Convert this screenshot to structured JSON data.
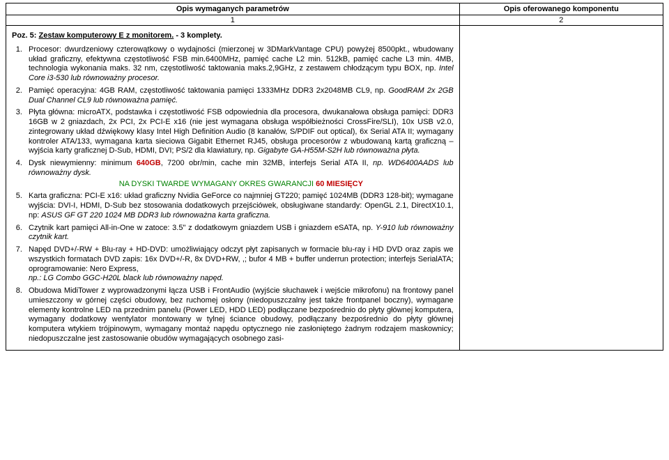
{
  "headers": {
    "left": "Opis wymaganych parametrów",
    "right": "Opis oferowanego komponentu",
    "col1": "1",
    "col2": "2"
  },
  "title": {
    "prefix": "Poz. 5: ",
    "underline": "Zestaw komputerowy E z monitorem.",
    "suffix": " - 3 komplety."
  },
  "items": {
    "i1": {
      "text": "Procesor: dwurdzeniowy czterowątkowy o wydajności (mierzonej w 3DMarkVantage CPU) powyżej 8500pkt., wbudowany układ graficzny, efektywna częstotliwość FSB min.6400MHz, pamięć cache L2 min. 512kB, pamięć cache L3 min. 4MB, technologia wykonania maks. 32 nm, częstotliwość taktowania maks.2,9GHz, z zestawem chłodzącym typu BOX, np. ",
      "em": "Intel Core i3-530 lub równoważny procesor."
    },
    "i2": {
      "text": "Pamięć operacyjna: 4GB RAM, częstotliwość taktowania pamięci 1333MHz DDR3 2x2048MB CL9, np. ",
      "em": "GoodRAM 2x 2GB Dual Channel CL9 lub równoważna pamięć."
    },
    "i3": {
      "text": "Płyta główna: microATX, podstawka i częstotliwość FSB odpowiednia dla procesora, dwukanałowa obsługa pamięci: DDR3  16GB w 2 gniazdach, 2x PCI, 2x PCI-E x16 (nie jest wymagana obsługa współbieżności CrossFire/SLI), 10x USB v2.0, zintegrowany układ dźwiękowy klasy Intel High Definition Audio (8 kanałów, S/PDIF out optical), 6x Serial ATA II; wymagany kontroler ATA/133, wymagana karta sieciowa Gigabit Ethernet RJ45, obsługa procesorów z wbudowaną kartą graficzną – wyjścia karty graficznej D-Sub, HDMI, DVI; PS/2 dla klawiatury, np. ",
      "em": "Gigabyte GA-H55M-S2H lub równoważna płyta."
    },
    "i4": {
      "pre": "Dysk niewymienny: minimum ",
      "red": "640GB",
      "post": ", 7200 obr/min, cache min 32MB, interfejs Serial ATA II, ",
      "np": "np. ",
      "em": "WD6400AADS lub równoważny dysk.",
      "green_pre": "NA DYSKI TWARDE WYMAGANY OKRES GWARANCJI ",
      "green_red": "60 MIESIĘCY"
    },
    "i5": {
      "text": "Karta graficzna: PCI-E x16: układ graficzny Nvidia GeForce co najmniej GT220; pamięć 1024MB (DDR3 128-bit); wymagane wyjścia: DVI-I, HDMI, D-Sub bez stosowania dodatkowych przejściówek, obsługiwane standardy: OpenGL 2.1, DirectX10.1, np: ",
      "em": "ASUS GF GT 220 1024 MB DDR3 lub równoważna karta graficzna."
    },
    "i6": {
      "text": "Czytnik kart pamięci All-in-One w zatoce: 3.5\"  z dodatkowym gniazdem USB i gniazdem eSATA, np.  ",
      "em": "Y-910 lub równoważny czytnik kart."
    },
    "i7": {
      "text": "Napęd DVD+/-RW + Blu-ray + HD-DVD: umożliwiający odczyt płyt zapisanych w formacie blu-ray i HD DVD oraz zapis we wszystkich formatach DVD zapis: 16x DVD+/-R, 8x DVD+RW, ,; bufor 4 MB + buffer underrun protection; interfejs SerialATA; oprogramowanie: Nero Express,",
      "em": "np.: LG Combo GGC-H20L black lub równoważny napęd."
    },
    "i8": {
      "text": "Obudowa MidiTower z wyprowadzonymi łącza USB i FrontAudio (wyjście słuchawek i wejście mikrofonu) na frontowy panel umieszczony w górnej części obudowy, bez ruchomej osłony (niedopuszczalny jest także frontpanel boczny), wymagane elementy kontrolne LED na przednim panelu (Power LED, HDD LED) podłączane bezpośrednio do płyty głównej komputera, wymagany dodatkowy wentylator montowany w tylnej ściance obudowy, podłączany bezpośrednio do płyty głównej komputera wtykiem trójpinowym, wymagany montaż napędu optycznego nie zasłoniętego żadnym rodzajem maskownicy; niedopuszczalne jest zastosowanie obudów wymagających osobnego zasi-"
    }
  }
}
